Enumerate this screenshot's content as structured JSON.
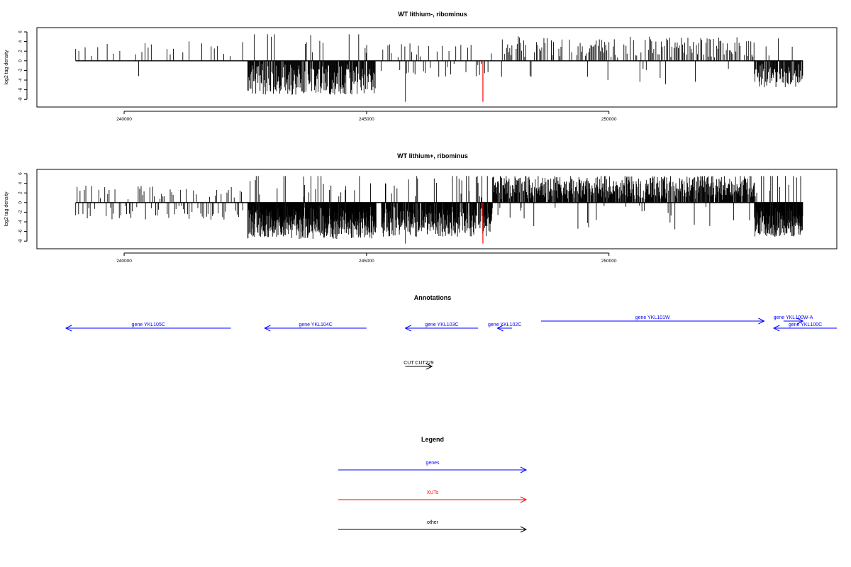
{
  "chart_data": [
    {
      "type": "bar",
      "title": "WT lithium-, ribominus",
      "ylabel": "log2 tag density",
      "xlim": [
        238200,
        254700
      ],
      "ylim": [
        -9,
        6
      ],
      "x_ticks": [
        240000,
        245000,
        250000
      ],
      "y_ticks": [
        6,
        4,
        2,
        0,
        -2,
        -4,
        -6,
        -8
      ],
      "series": [
        {
          "x_start": 239000,
          "x_end": 254000,
          "values_seed": 1,
          "density": "sparse"
        }
      ],
      "highlight_lines": [
        {
          "x": 245800,
          "y_min": -8.5,
          "y_max": 0,
          "color": "#ff0000"
        },
        {
          "x": 247400,
          "y_min": -8.5,
          "y_max": 0,
          "color": "#ff0000"
        }
      ],
      "segments": [
        {
          "from": 239000,
          "to": 242500,
          "sign": 1,
          "amp": 3.5,
          "step": 65,
          "fill": 0.45
        },
        {
          "from": 242550,
          "to": 245200,
          "sign": -1,
          "amp": 6.5,
          "step": 11,
          "fill": 0.95
        },
        {
          "from": 245300,
          "to": 247800,
          "sign": 0,
          "amp": 3.0,
          "step": 35,
          "fill": 0.55
        },
        {
          "from": 247800,
          "to": 253000,
          "sign": 1,
          "amp": 4.5,
          "step": 22,
          "fill": 0.65
        },
        {
          "from": 253000,
          "to": 254000,
          "sign": -1,
          "amp": 5.0,
          "step": 12,
          "fill": 0.9
        }
      ]
    },
    {
      "type": "bar",
      "title": "WT lithium+, ribominus",
      "ylabel": "log2 tag density",
      "xlim": [
        238200,
        254700
      ],
      "ylim": [
        -9,
        6
      ],
      "x_ticks": [
        240000,
        245000,
        250000
      ],
      "y_ticks": [
        6,
        4,
        2,
        0,
        -2,
        -4,
        -6,
        -8
      ],
      "highlight_lines": [
        {
          "x": 245800,
          "y_min": -8.5,
          "y_max": 0,
          "color": "#ff0000"
        },
        {
          "x": 247400,
          "y_min": -8.5,
          "y_max": 0,
          "color": "#ff0000"
        }
      ],
      "segments": [
        {
          "from": 239000,
          "to": 242500,
          "sign": 0,
          "amp": 3.0,
          "step": 30,
          "fill": 0.8
        },
        {
          "from": 242550,
          "to": 245200,
          "sign": -1,
          "amp": 7.0,
          "step": 6,
          "fill": 1.0
        },
        {
          "from": 245300,
          "to": 247600,
          "sign": -1,
          "amp": 6.5,
          "step": 8,
          "fill": 0.95
        },
        {
          "from": 247600,
          "to": 253000,
          "sign": 1,
          "amp": 5.0,
          "step": 10,
          "fill": 0.9
        },
        {
          "from": 253000,
          "to": 254000,
          "sign": -1,
          "amp": 6.5,
          "step": 6,
          "fill": 1.0
        }
      ]
    },
    {
      "type": "other",
      "title": "Annotations",
      "features": [
        {
          "label": "gene YKL105C",
          "start": 242200,
          "end": 238800,
          "color": "#0000ff",
          "row": 1
        },
        {
          "label": "gene YKL104C",
          "start": 245000,
          "end": 242900,
          "color": "#0000ff",
          "row": 1
        },
        {
          "label": "gene YKL103C",
          "start": 247300,
          "end": 245800,
          "color": "#0000ff",
          "row": 1
        },
        {
          "label": "gene YKL102C",
          "start": 248000,
          "end": 247700,
          "color": "#0000ff",
          "row": 1
        },
        {
          "label": "gene YKL101W",
          "start": 248600,
          "end": 253200,
          "color": "#0000ff",
          "row": 0
        },
        {
          "label": "gene YKL100W-A",
          "start": 253600,
          "end": 254000,
          "color": "#0000ff",
          "row": 0
        },
        {
          "label": "gene YKL100C",
          "start": 254700,
          "end": 253400,
          "color": "#0000ff",
          "row": 1
        },
        {
          "label": "CUT CUT229",
          "start": 245800,
          "end": 246350,
          "color": "#000000",
          "row": 2
        }
      ]
    },
    {
      "type": "other",
      "title": "Legend",
      "entries": [
        {
          "label": "genes",
          "color": "#0000ff"
        },
        {
          "label": "XUTs",
          "color": "#ff0000"
        },
        {
          "label": "other",
          "color": "#000000"
        }
      ]
    }
  ]
}
